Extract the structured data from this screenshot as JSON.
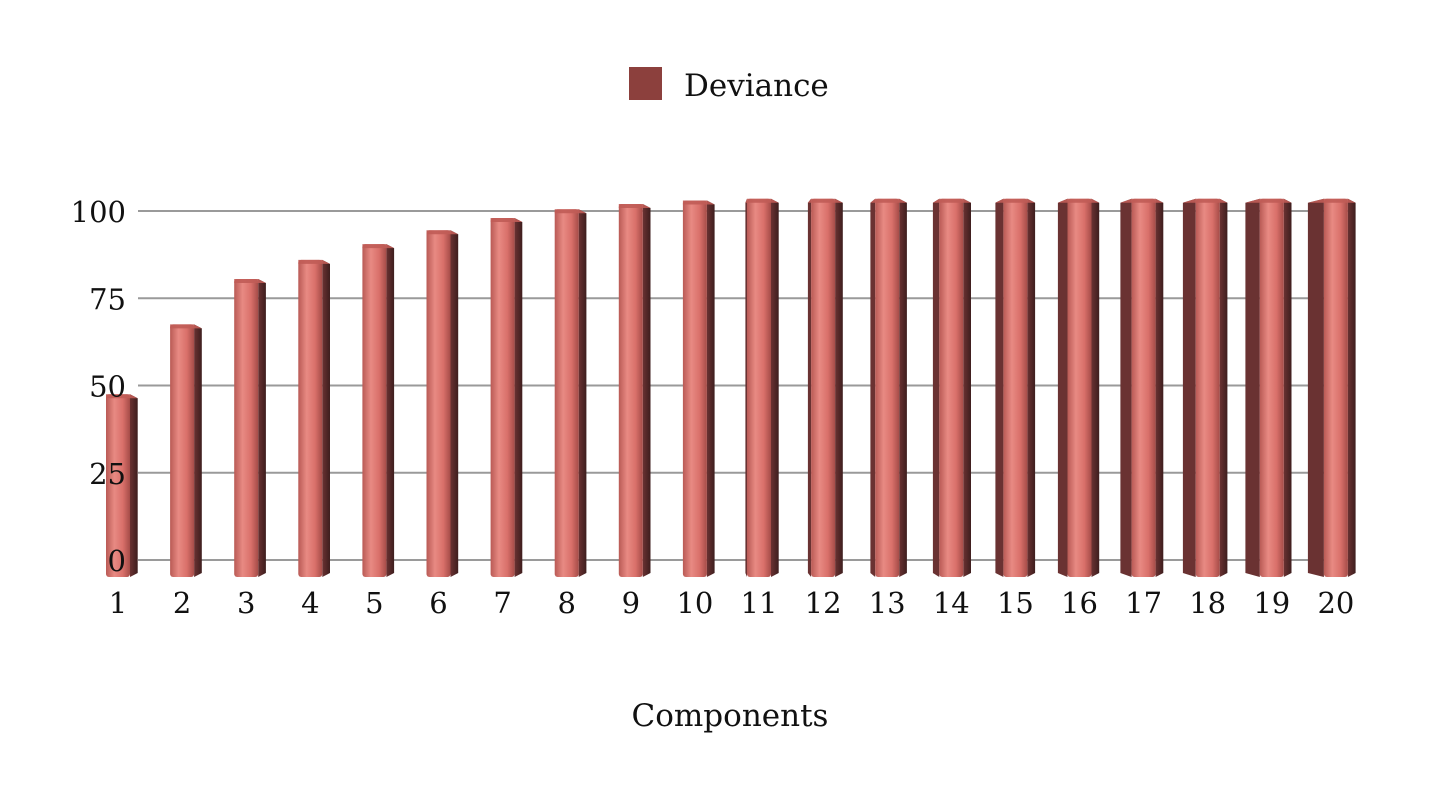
{
  "chart_data": {
    "type": "bar",
    "categories": [
      "1",
      "2",
      "3",
      "4",
      "5",
      "6",
      "7",
      "8",
      "9",
      "10",
      "11",
      "12",
      "13",
      "14",
      "15",
      "16",
      "17",
      "18",
      "19",
      "20"
    ],
    "series": [
      {
        "name": "Deviance",
        "values": [
          47.5,
          67.5,
          80.5,
          86,
          90.5,
          94.5,
          98,
          100.5,
          102,
          103,
          103.5,
          103.5,
          103.5,
          103.5,
          103.5,
          103.5,
          103.5,
          103.5,
          103.5,
          103.5
        ]
      }
    ],
    "xlabel": "Components",
    "ylabel": "",
    "yticks": [
      0,
      25,
      50,
      75,
      100
    ],
    "ylim": [
      0,
      100
    ],
    "legend": "top-center",
    "grid": true,
    "style": "3d-cylinder",
    "colors": {
      "bar_front": "#d9706a",
      "bar_highlight": "#e88a83",
      "bar_side": "#4a2424",
      "bar_side_mid": "#6a3232",
      "bar_top": "#c05c57",
      "legend_swatch": "#8c403d",
      "grid": "#9a9a9a"
    }
  }
}
